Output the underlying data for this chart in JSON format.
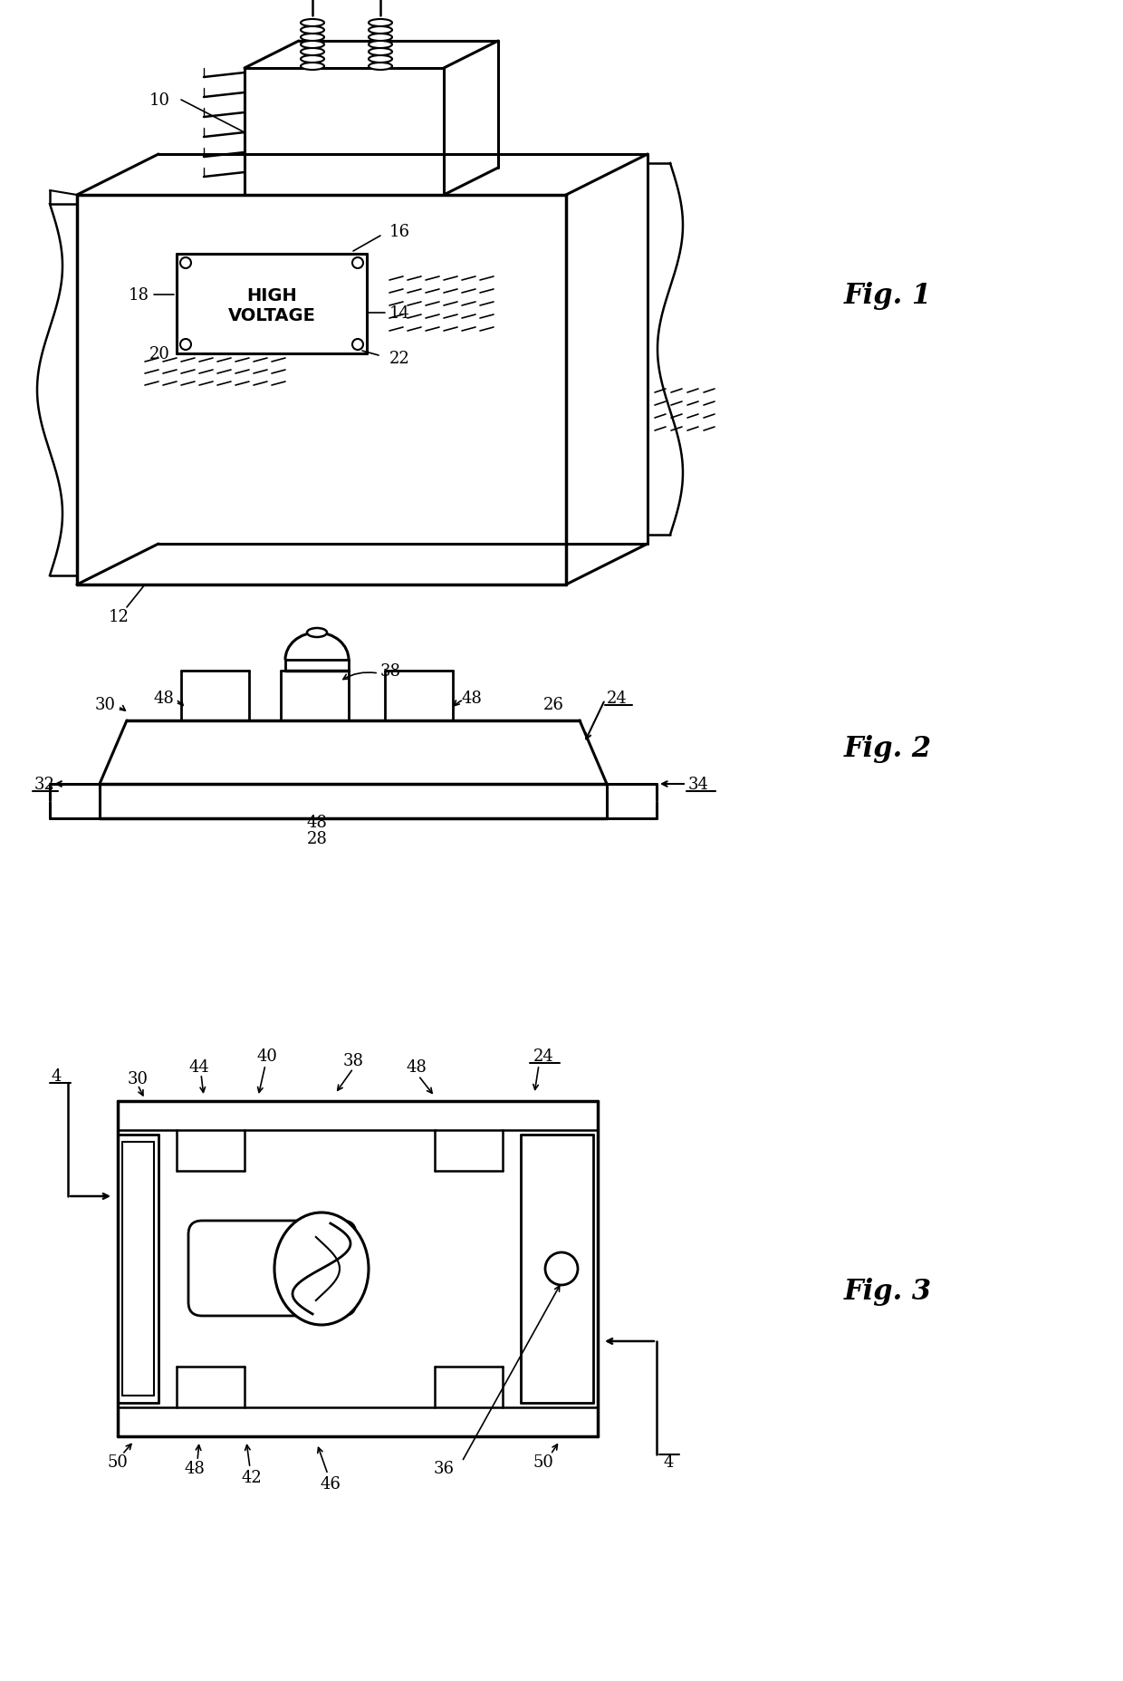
{
  "fig_labels": {
    "fig1": "Fig. 1",
    "fig2": "Fig. 2",
    "fig3": "Fig. 3"
  },
  "background_color": "#ffffff",
  "line_color": "#000000"
}
